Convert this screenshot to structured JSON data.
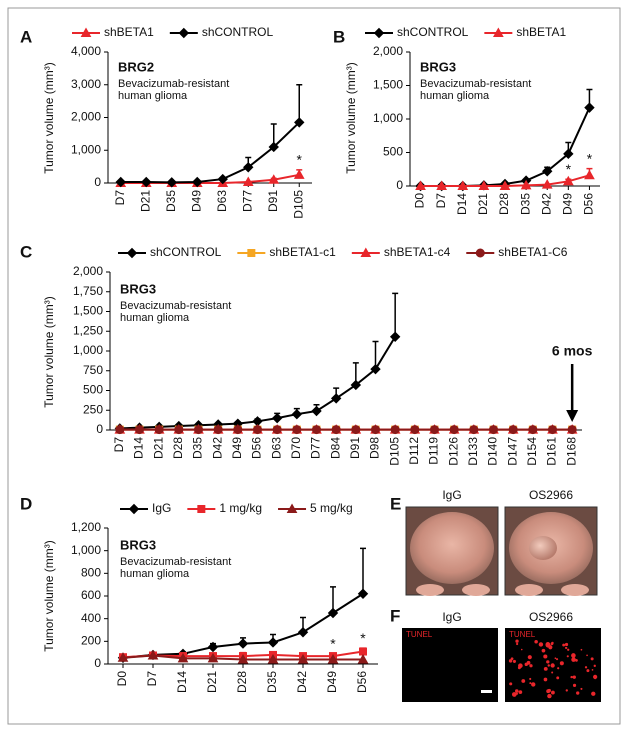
{
  "chart_data": [
    {
      "type": "line",
      "panel": "A",
      "y_label": "Tumor volume (mm³)",
      "annotations": [
        "BRG2",
        "Bevacizumab-resistant",
        "human glioma"
      ],
      "categories": [
        "D7",
        "D21",
        "D35",
        "D49",
        "D63",
        "D77",
        "D91",
        "D105"
      ],
      "series": [
        {
          "name": "shBETA1",
          "color": "#e8262b",
          "marker": "triangle",
          "values": [
            0,
            0,
            0,
            0,
            0,
            30,
            100,
            250
          ],
          "errors": [
            null,
            null,
            null,
            null,
            null,
            null,
            40,
            150
          ]
        },
        {
          "name": "shCONTROL",
          "color": "#000000",
          "marker": "diamond",
          "values": [
            30,
            30,
            20,
            30,
            120,
            480,
            1100,
            1850
          ],
          "errors": [
            null,
            null,
            null,
            null,
            40,
            300,
            700,
            1150
          ]
        }
      ],
      "significance": [
        {
          "x": "D105",
          "label": "*"
        }
      ],
      "ylim": [
        0,
        4000
      ],
      "yticks": [
        0,
        {
          "value": 1000,
          "label": "1,000"
        },
        {
          "value": 2000,
          "label": "2,000"
        },
        {
          "value": 3000,
          "label": "3,000"
        },
        {
          "value": 4000,
          "label": "4,000"
        }
      ]
    },
    {
      "type": "line",
      "panel": "B",
      "y_label": "Tumor volume (mm³)",
      "annotations": [
        "BRG3",
        "Bevacizumab-resistant",
        "human glioma"
      ],
      "categories": [
        "D0",
        "D7",
        "D14",
        "D21",
        "D28",
        "D35",
        "D42",
        "D49",
        "D56"
      ],
      "series": [
        {
          "name": "shCONTROL",
          "color": "#000000",
          "marker": "diamond",
          "values": [
            0,
            0,
            0,
            10,
            30,
            80,
            220,
            480,
            1170
          ],
          "errors": [
            null,
            null,
            null,
            null,
            null,
            20,
            60,
            170,
            270
          ]
        },
        {
          "name": "shBETA1",
          "color": "#e8262b",
          "marker": "triangle",
          "values": [
            0,
            0,
            0,
            0,
            0,
            10,
            20,
            70,
            160
          ],
          "errors": [
            null,
            null,
            null,
            null,
            null,
            null,
            null,
            30,
            100
          ]
        }
      ],
      "significance": [
        {
          "x": "D49",
          "label": "*"
        },
        {
          "x": "D56",
          "label": "*"
        }
      ],
      "ylim": [
        0,
        2000
      ],
      "yticks": [
        0,
        500,
        {
          "value": 1000,
          "label": "1,000"
        },
        {
          "value": 1500,
          "label": "1,500"
        },
        {
          "value": 2000,
          "label": "2,000"
        }
      ]
    },
    {
      "type": "line",
      "panel": "C",
      "y_label": "Tumor volume (mm³)",
      "annotations": [
        "BRG3",
        "Bevacizumab-resistant",
        "human glioma"
      ],
      "arrow_label": {
        "x": "D168",
        "label": "6 mos"
      },
      "categories": [
        "D7",
        "D14",
        "D21",
        "D28",
        "D35",
        "D42",
        "D49",
        "D56",
        "D63",
        "D70",
        "D77",
        "D84",
        "D91",
        "D98",
        "D105",
        "D112",
        "D119",
        "D126",
        "D133",
        "D140",
        "D147",
        "D154",
        "D161",
        "D168"
      ],
      "series": [
        {
          "name": "shCONTROL",
          "color": "#000000",
          "marker": "diamond",
          "values": [
            20,
            30,
            40,
            50,
            60,
            70,
            80,
            110,
            150,
            200,
            240,
            400,
            570,
            770,
            1180,
            null,
            null,
            null,
            null,
            null,
            null,
            null,
            null,
            null
          ],
          "errors": [
            null,
            null,
            null,
            null,
            null,
            null,
            20,
            30,
            60,
            70,
            80,
            130,
            280,
            350,
            550,
            null,
            null,
            null,
            null,
            null,
            null,
            null,
            null,
            null
          ]
        },
        {
          "name": "shBETA1-c1",
          "color": "#f5a623",
          "marker": "square",
          "values": [
            5,
            5,
            5,
            5,
            5,
            5,
            5,
            5,
            5,
            5,
            5,
            5,
            5,
            5,
            5,
            5,
            5,
            5,
            5,
            5,
            5,
            5,
            5,
            5
          ]
        },
        {
          "name": "shBETA1-c4",
          "color": "#e8262b",
          "marker": "triangle",
          "values": [
            5,
            5,
            5,
            5,
            5,
            5,
            5,
            5,
            5,
            5,
            5,
            5,
            5,
            5,
            5,
            5,
            5,
            5,
            5,
            5,
            5,
            5,
            5,
            5
          ]
        },
        {
          "name": "shBETA1-C6",
          "color": "#8b1a1a",
          "marker": "circle",
          "values": [
            5,
            5,
            5,
            5,
            5,
            5,
            5,
            5,
            5,
            5,
            5,
            5,
            5,
            5,
            5,
            5,
            5,
            5,
            5,
            5,
            5,
            5,
            5,
            5
          ]
        }
      ],
      "ylim": [
        0,
        2000
      ],
      "yticks": [
        0,
        250,
        500,
        750,
        {
          "value": 1000,
          "label": "1,000"
        },
        {
          "value": 1250,
          "label": "1,250"
        },
        {
          "value": 1500,
          "label": "1,500"
        },
        {
          "value": 1750,
          "label": "1,750"
        },
        {
          "value": 2000,
          "label": "2,000"
        }
      ]
    },
    {
      "type": "line",
      "panel": "D",
      "y_label": "Tumor volume (mm³)",
      "annotations": [
        "BRG3",
        "Bevacizumab-resistant",
        "human glioma"
      ],
      "categories": [
        "D0",
        "D7",
        "D14",
        "D21",
        "D28",
        "D35",
        "D42",
        "D49",
        "D56"
      ],
      "series": [
        {
          "name": "IgG",
          "color": "#000000",
          "marker": "diamond",
          "values": [
            55,
            80,
            90,
            150,
            180,
            190,
            280,
            450,
            620
          ],
          "errors": [
            10,
            10,
            15,
            30,
            50,
            70,
            130,
            230,
            400
          ]
        },
        {
          "name": "1 mg/kg",
          "color": "#e8262b",
          "marker": "square",
          "values": [
            60,
            75,
            70,
            70,
            70,
            80,
            70,
            70,
            110
          ],
          "errors": [
            10,
            10,
            20,
            20,
            30,
            20,
            20,
            20,
            30
          ]
        },
        {
          "name": "5 mg/kg",
          "color": "#8b1a1a",
          "marker": "triangle",
          "values": [
            55,
            75,
            50,
            50,
            40,
            40,
            40,
            40,
            40
          ]
        }
      ],
      "significance": [
        {
          "x": "D49",
          "label": "*"
        },
        {
          "x": "D56",
          "label": "*"
        }
      ],
      "ylim": [
        0,
        1200
      ],
      "yticks": [
        0,
        200,
        400,
        600,
        800,
        {
          "value": 1000,
          "label": "1,000"
        },
        {
          "value": 1200,
          "label": "1,200"
        }
      ]
    }
  ],
  "panel_e": {
    "label": "E",
    "titles": [
      "IgG",
      "OS2966"
    ]
  },
  "panel_f": {
    "label": "F",
    "titles": [
      "IgG",
      "OS2966"
    ],
    "stain_labels": [
      "TUNEL",
      "TUNEL"
    ]
  }
}
